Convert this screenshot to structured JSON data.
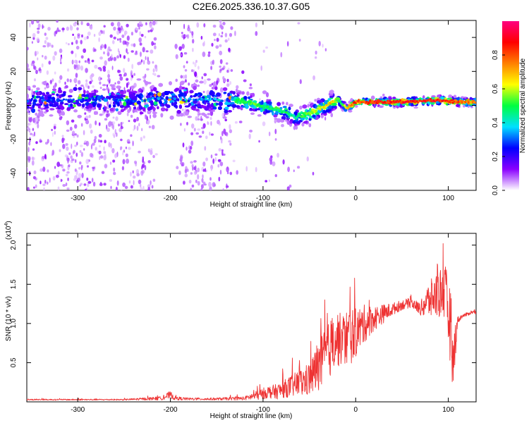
{
  "title": "C2E6.2025.336.10.37.G05",
  "chart_data": [
    {
      "type": "heatmap",
      "xlabel": "Height of straight line (km)",
      "ylabel": "Frequency (Hz)",
      "xlim": [
        -355,
        130
      ],
      "ylim": [
        -50,
        50
      ],
      "xticks": [
        -300,
        -200,
        -100,
        0,
        100
      ],
      "yticks": [
        -40,
        -20,
        0,
        20,
        40
      ],
      "xtick_labels": [
        "-300",
        "-200",
        "-100",
        "0",
        "100"
      ],
      "ytick_labels": [
        "-40",
        "-20",
        "0",
        "20",
        "40"
      ],
      "colorbar": {
        "label": "Normalized spectral amplitude",
        "range": [
          0,
          1
        ],
        "ticks": [
          0.0,
          0.2,
          0.4,
          0.6,
          0.8
        ],
        "tick_labels": [
          "0.0",
          "0.2",
          "0.4",
          "0.6",
          "0.8"
        ],
        "colormap": [
          "#ffffff",
          "#8a00ff",
          "#0000ff",
          "#00e0ff",
          "#00ff40",
          "#ffff00",
          "#ff8000",
          "#ff0000",
          "#ff0080"
        ]
      },
      "ridge": {
        "x": [
          -355,
          -300,
          -250,
          -220,
          -200,
          -160,
          -130,
          -110,
          -90,
          -75,
          -65,
          -50,
          -35,
          -25,
          -20,
          -15,
          -10,
          -5,
          0,
          50,
          90,
          110,
          130
        ],
        "frequency": [
          3,
          3,
          3,
          3.5,
          4,
          3.5,
          3,
          1,
          -2,
          -4,
          -7,
          -5,
          -1,
          2,
          4,
          1,
          -2,
          0,
          2,
          2,
          3,
          2,
          2
        ],
        "amplitude": [
          0.3,
          0.3,
          0.3,
          0.35,
          0.4,
          0.35,
          0.5,
          0.55,
          0.5,
          0.5,
          0.45,
          0.6,
          0.65,
          0.7,
          0.6,
          0.5,
          0.7,
          0.8,
          0.85,
          0.9,
          0.9,
          0.85,
          0.8
        ]
      }
    },
    {
      "type": "line",
      "xlabel": "Height of straight line (km)",
      "ylabel": "SNR (10 * v/v)",
      "y_multiplier_label": "(x10",
      "y_multiplier_exponent": "4",
      "y_multiplier_close": ")",
      "xlim": [
        -355,
        130
      ],
      "ylim": [
        0,
        2.15
      ],
      "xticks": [
        -300,
        -200,
        -100,
        0,
        100
      ],
      "yticks": [
        0.5,
        1.0,
        1.5,
        2.0
      ],
      "xtick_labels": [
        "-300",
        "-200",
        "-100",
        "0",
        "100"
      ],
      "ytick_labels": [
        "0.5",
        "1.0",
        "1.5",
        "2.0"
      ],
      "color": "#ee3333",
      "series": [
        {
          "x": [
            -355,
            -250,
            -210,
            -200,
            -195,
            -180,
            -150,
            -120,
            -105,
            -95,
            -85,
            -75,
            -65,
            -55,
            -48,
            -42,
            -38,
            -30,
            -22,
            -15,
            -8,
            0,
            10,
            20,
            30,
            40,
            50,
            60,
            70,
            75,
            80,
            85,
            90,
            95,
            100,
            103,
            105,
            108,
            110,
            115,
            120,
            125,
            130
          ],
          "y": [
            0.03,
            0.03,
            0.05,
            0.1,
            0.05,
            0.04,
            0.04,
            0.05,
            0.1,
            0.14,
            0.15,
            0.2,
            0.25,
            0.3,
            0.35,
            0.5,
            0.55,
            0.7,
            0.9,
            0.85,
            0.9,
            0.95,
            1.05,
            1.1,
            1.15,
            1.2,
            1.25,
            1.28,
            1.2,
            1.3,
            1.35,
            1.4,
            1.45,
            1.5,
            1.25,
            1.0,
            0.5,
            0.9,
            1.05,
            1.1,
            1.12,
            1.15,
            1.15
          ],
          "noise": [
            0.01,
            0.01,
            0.03,
            0.06,
            0.03,
            0.02,
            0.02,
            0.03,
            0.08,
            0.1,
            0.12,
            0.15,
            0.2,
            0.25,
            0.28,
            0.4,
            0.45,
            0.45,
            0.5,
            0.4,
            0.5,
            0.4,
            0.3,
            0.2,
            0.15,
            0.1,
            0.08,
            0.08,
            0.1,
            0.25,
            0.3,
            0.35,
            0.4,
            0.45,
            0.6,
            0.6,
            0.4,
            0.3,
            0.06,
            0.03,
            0.03,
            0.03,
            0.03
          ]
        }
      ]
    }
  ]
}
